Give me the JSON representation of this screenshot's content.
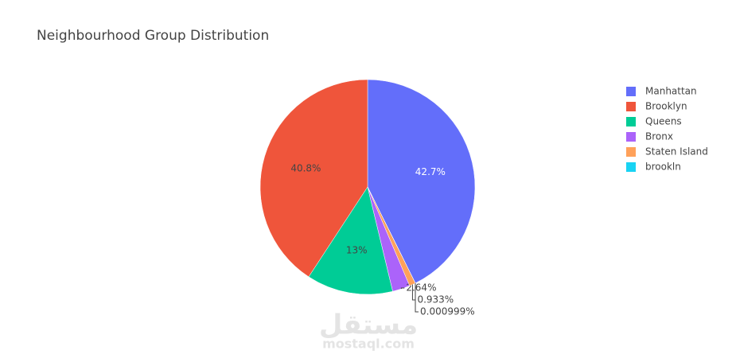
{
  "chart_data": {
    "type": "pie",
    "title": "Neighbourhood Group Distribution",
    "categories": [
      "Manhattan",
      "Brooklyn",
      "Queens",
      "Bronx",
      "Staten Island",
      "brookln"
    ],
    "values": [
      42.7,
      40.8,
      13,
      2.64,
      0.933,
      0.000999
    ],
    "value_labels": [
      "42.7%",
      "40.8%",
      "13%",
      "2.64%",
      "0.933%",
      "0.000999%"
    ],
    "colors": [
      "#636efa",
      "#ef553b",
      "#00cc96",
      "#ab63fa",
      "#ffa15a",
      "#19d3f3"
    ],
    "legend": "right"
  },
  "watermark": {
    "arabic": "مستقل",
    "site": "mostaql.com"
  }
}
